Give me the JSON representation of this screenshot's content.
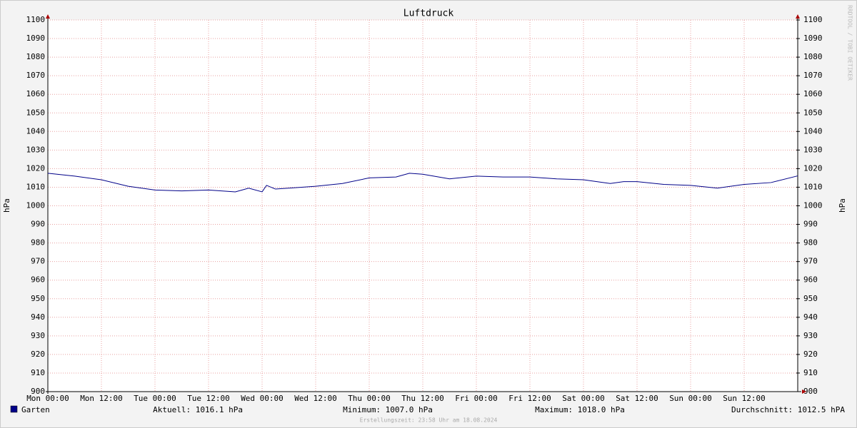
{
  "chart_data": {
    "type": "line",
    "title": "Luftdruck",
    "y_label": "hPa",
    "y2_label": "hPa",
    "side_note": "RRDTOOL / TOBI OETIKER",
    "footer": "Erstellungszeit: 23:58 Uhr am 18.08.2024",
    "xlim": [
      0,
      168
    ],
    "xticks": [
      {
        "value": 0,
        "label": "Mon 00:00"
      },
      {
        "value": 12,
        "label": "Mon 12:00"
      },
      {
        "value": 24,
        "label": "Tue 00:00"
      },
      {
        "value": 36,
        "label": "Tue 12:00"
      },
      {
        "value": 48,
        "label": "Wed 00:00"
      },
      {
        "value": 60,
        "label": "Wed 12:00"
      },
      {
        "value": 72,
        "label": "Thu 00:00"
      },
      {
        "value": 84,
        "label": "Thu 12:00"
      },
      {
        "value": 96,
        "label": "Fri 00:00"
      },
      {
        "value": 108,
        "label": "Fri 12:00"
      },
      {
        "value": 120,
        "label": "Sat 00:00"
      },
      {
        "value": 132,
        "label": "Sat 12:00"
      },
      {
        "value": 144,
        "label": "Sun 00:00"
      },
      {
        "value": 156,
        "label": "Sun 12:00"
      }
    ],
    "ylim": [
      900,
      1100
    ],
    "yticks": [
      900,
      910,
      920,
      930,
      940,
      950,
      960,
      970,
      980,
      990,
      1000,
      1010,
      1020,
      1030,
      1040,
      1050,
      1060,
      1070,
      1080,
      1090,
      1100
    ],
    "y2lim": [
      900,
      1100
    ],
    "y2ticks": [
      900,
      910,
      920,
      930,
      940,
      950,
      960,
      970,
      980,
      990,
      1000,
      1010,
      1020,
      1030,
      1040,
      1050,
      1060,
      1070,
      1080,
      1090,
      1100
    ],
    "grid": true,
    "x": [
      0,
      6,
      12,
      18,
      24,
      30,
      36,
      42,
      45,
      48,
      49,
      51,
      54,
      60,
      66,
      72,
      78,
      81,
      84,
      90,
      96,
      102,
      108,
      114,
      120,
      126,
      129,
      132,
      138,
      144,
      150,
      156,
      162,
      168
    ],
    "series": [
      {
        "name": "Garten",
        "color": "#000088",
        "values": [
          1017.5,
          1016,
          1014,
          1010.5,
          1008.5,
          1008,
          1008.5,
          1007.5,
          1009.5,
          1007.5,
          1011,
          1009,
          1009.5,
          1010.5,
          1012,
          1015,
          1015.5,
          1017.5,
          1017,
          1014.5,
          1016,
          1015.5,
          1015.5,
          1014.5,
          1014,
          1012,
          1013,
          1013,
          1011.5,
          1011,
          1009.5,
          1011.5,
          1012.5,
          1016.1
        ]
      }
    ],
    "stats": [
      "Aktuell: 1016.1 hPa",
      "Minimum: 1007.0 hPa",
      "Maximum: 1018.0 hPa",
      "Durchschnitt: 1012.5 hPA"
    ]
  }
}
